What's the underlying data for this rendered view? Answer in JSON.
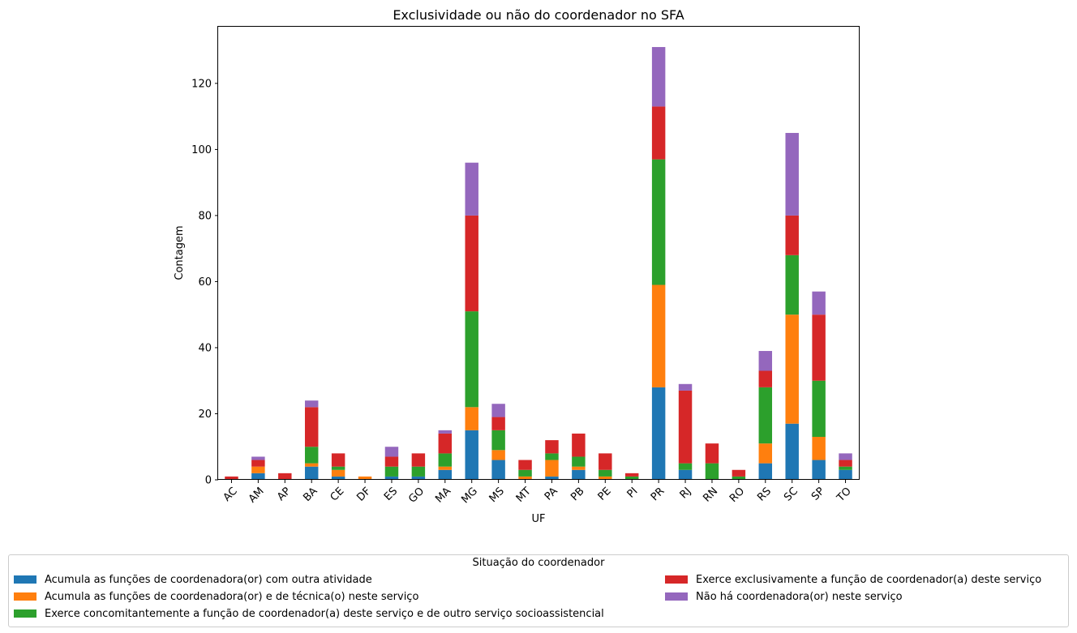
{
  "colors": {
    "series": [
      "#1f77b4",
      "#ff7f0e",
      "#2ca02c",
      "#d62728",
      "#9467bd"
    ],
    "axis": "#000000",
    "legend_border": "#cccccc"
  },
  "chart_data": {
    "type": "bar",
    "stacked": true,
    "title": "Exclusividade ou não do coordenador no SFA",
    "xlabel": "UF",
    "ylabel": "Contagem",
    "ylim": [
      0,
      137
    ],
    "yticks": [
      0,
      20,
      40,
      60,
      80,
      100,
      120
    ],
    "grid": false,
    "legend_title": "Situação do coordenador",
    "legend_position": "below chart",
    "categories": [
      "AC",
      "AM",
      "AP",
      "BA",
      "CE",
      "DF",
      "ES",
      "GO",
      "MA",
      "MG",
      "MS",
      "MT",
      "PA",
      "PB",
      "PE",
      "PI",
      "PR",
      "RJ",
      "RN",
      "RO",
      "RS",
      "SC",
      "SP",
      "TO"
    ],
    "series": [
      {
        "name": "Acumula as funções de coordenadora(or) com outra atividade",
        "values": [
          0,
          2,
          0,
          4,
          1,
          0,
          1,
          1,
          3,
          15,
          6,
          0,
          1,
          3,
          0,
          0,
          28,
          3,
          0,
          0,
          5,
          17,
          6,
          3
        ]
      },
      {
        "name": "Acumula as funções de coordenadora(or) e de técnica(o) neste serviço",
        "values": [
          0,
          2,
          0,
          1,
          2,
          1,
          0,
          0,
          1,
          7,
          3,
          1,
          5,
          1,
          1,
          0,
          31,
          0,
          0,
          0,
          6,
          33,
          7,
          0
        ]
      },
      {
        "name": "Exerce concomitantemente a função de coordenador(a) deste serviço e de outro serviço socioassistencial",
        "values": [
          0,
          0,
          0,
          5,
          1,
          0,
          3,
          3,
          4,
          29,
          6,
          2,
          2,
          3,
          2,
          1,
          38,
          2,
          5,
          1,
          17,
          18,
          17,
          1
        ]
      },
      {
        "name": "Exerce exclusivamente a função de coordenador(a) deste serviço",
        "values": [
          1,
          2,
          2,
          12,
          4,
          0,
          3,
          4,
          6,
          29,
          4,
          3,
          4,
          7,
          5,
          1,
          16,
          22,
          6,
          2,
          5,
          12,
          20,
          2
        ]
      },
      {
        "name": "Não há coordenadora(or) neste serviço",
        "values": [
          0,
          1,
          0,
          2,
          0,
          0,
          3,
          0,
          1,
          16,
          4,
          0,
          0,
          0,
          0,
          0,
          18,
          2,
          0,
          0,
          6,
          25,
          7,
          2
        ]
      }
    ]
  }
}
